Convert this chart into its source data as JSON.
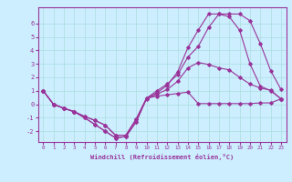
{
  "xlabel": "Windchill (Refroidissement éolien,°C)",
  "background_color": "#cceeff",
  "grid_color": "#aadddd",
  "line_color": "#993399",
  "x_values": [
    0,
    1,
    2,
    3,
    4,
    5,
    6,
    7,
    8,
    9,
    10,
    11,
    12,
    13,
    14,
    15,
    16,
    17,
    18,
    19,
    20,
    21,
    22,
    23
  ],
  "line1_y": [
    1.0,
    0.0,
    -0.3,
    -0.55,
    -0.9,
    -1.2,
    -1.55,
    -2.3,
    -2.3,
    -1.1,
    0.45,
    0.6,
    0.7,
    0.8,
    0.9,
    0.05,
    0.05,
    0.05,
    0.05,
    0.05,
    0.05,
    0.1,
    0.1,
    0.4
  ],
  "line2_y": [
    1.0,
    0.0,
    -0.3,
    -0.55,
    -1.0,
    -1.5,
    -2.0,
    -2.5,
    -2.4,
    -1.3,
    0.45,
    1.0,
    1.5,
    2.2,
    3.5,
    4.3,
    5.7,
    6.7,
    6.7,
    6.7,
    6.2,
    4.5,
    2.5,
    1.1
  ],
  "line3_y": [
    1.0,
    0.0,
    -0.3,
    -0.55,
    -0.9,
    -1.2,
    -1.55,
    -2.3,
    -2.3,
    -1.1,
    0.45,
    0.85,
    1.4,
    2.4,
    4.2,
    5.5,
    6.7,
    6.7,
    6.5,
    5.5,
    3.0,
    1.35,
    1.0,
    0.4
  ],
  "line4_y": [
    1.0,
    0.0,
    -0.3,
    -0.55,
    -1.0,
    -1.5,
    -2.0,
    -2.5,
    -2.4,
    -1.3,
    0.4,
    0.75,
    1.1,
    1.7,
    2.7,
    3.1,
    2.95,
    2.7,
    2.55,
    2.0,
    1.5,
    1.2,
    1.05,
    0.4
  ],
  "ylim": [
    -2.8,
    7.2
  ],
  "xlim": [
    -0.5,
    23.5
  ],
  "yticks": [
    -2,
    -1,
    0,
    1,
    2,
    3,
    4,
    5,
    6
  ],
  "xticks": [
    0,
    1,
    2,
    3,
    4,
    5,
    6,
    7,
    8,
    9,
    10,
    11,
    12,
    13,
    14,
    15,
    16,
    17,
    18,
    19,
    20,
    21,
    22,
    23
  ]
}
